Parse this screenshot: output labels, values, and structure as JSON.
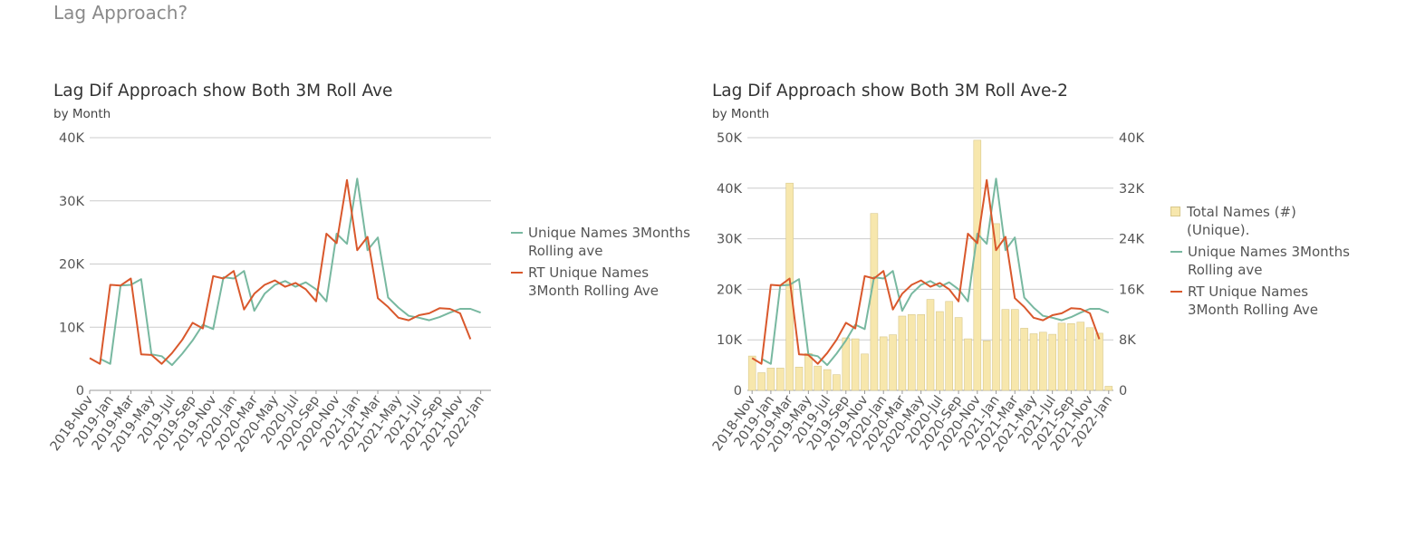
{
  "page": {
    "title": "Lag Approach?"
  },
  "colors": {
    "unique": "#78b8a0",
    "rt": "#d9582c",
    "bars": "#f7e7ad",
    "bars_border": "#d8c88c",
    "grid": "#cccccc"
  },
  "chart_data": [
    {
      "type": "line",
      "title": "Lag Dif Approach show  Both 3M Roll Ave",
      "subtitle": "by Month",
      "x": [
        "2018-Nov",
        "2018-Dec",
        "2019-Jan",
        "2019-Feb",
        "2019-Mar",
        "2019-Apr",
        "2019-May",
        "2019-Jun",
        "2019-Jul",
        "2019-Aug",
        "2019-Sep",
        "2019-Oct",
        "2019-Nov",
        "2019-Dec",
        "2020-Jan",
        "2020-Feb",
        "2020-Mar",
        "2020-Apr",
        "2020-May",
        "2020-Jun",
        "2020-Jul",
        "2020-Aug",
        "2020-Sep",
        "2020-Oct",
        "2020-Nov",
        "2020-Dec",
        "2021-Jan",
        "2021-Feb",
        "2021-Mar",
        "2021-Apr",
        "2021-May",
        "2021-Jun",
        "2021-Jul",
        "2021-Aug",
        "2021-Sep",
        "2021-Oct",
        "2021-Nov",
        "2021-Dec",
        "2022-Jan",
        "2022-Feb"
      ],
      "x_tick_labels": [
        "2018-Nov",
        "2019-Jan",
        "2019-Mar",
        "2019-May",
        "2019-Jul",
        "2019-Sep",
        "2019-Nov",
        "2020-Jan",
        "2020-Mar",
        "2020-May",
        "2020-Jul",
        "2020-Sep",
        "2020-Nov",
        "2021-Jan",
        "2021-Mar",
        "2021-May",
        "2021-Jul",
        "2021-Sep",
        "2021-Nov",
        "2022-Jan"
      ],
      "ylim": [
        0,
        40000
      ],
      "y_ticks": [
        "0",
        "10K",
        "20K",
        "30K",
        "40K"
      ],
      "series": [
        {
          "name": "Unique Names 3Months Rolling ave",
          "color": "#78b8a0",
          "values": [
            null,
            5000,
            4200,
            16600,
            16700,
            17600,
            5700,
            5400,
            4000,
            5800,
            7900,
            10400,
            9700,
            17900,
            17700,
            18900,
            12600,
            15300,
            16700,
            17300,
            16400,
            17100,
            16000,
            14100,
            24800,
            23200,
            33500,
            22200,
            24200,
            14700,
            13100,
            11800,
            11500,
            11100,
            11600,
            12300,
            12900,
            12900,
            12300,
            null
          ]
        },
        {
          "name": "RT Unique Names 3Month Rolling Ave",
          "color": "#d9582c",
          "values": [
            5100,
            4200,
            16700,
            16600,
            17700,
            5700,
            5600,
            4200,
            5900,
            8000,
            10700,
            9800,
            18100,
            17700,
            18900,
            12800,
            15300,
            16700,
            17400,
            16400,
            17000,
            16000,
            14100,
            24800,
            23300,
            33300,
            22200,
            24300,
            14600,
            13200,
            11500,
            11100,
            11900,
            12200,
            13000,
            12900,
            12200,
            8100,
            null,
            null
          ]
        }
      ],
      "legend": "right",
      "grid": true
    },
    {
      "type": "bar",
      "title": "Lag Dif Approach show  Both 3M Roll Ave-2",
      "subtitle": "by Month",
      "x_tick_labels": [
        "2018-Nov",
        "2019-Jan",
        "2019-Mar",
        "2019-May",
        "2019-Jul",
        "2019-Sep",
        "2019-Nov",
        "2020-Jan",
        "2020-Mar",
        "2020-May",
        "2020-Jul",
        "2020-Sep",
        "2020-Nov",
        "2021-Jan",
        "2021-Mar",
        "2021-May",
        "2021-Jul",
        "2021-Sep",
        "2021-Nov",
        "2022-Jan"
      ],
      "ylim_left": [
        0,
        50000
      ],
      "y_ticks_left": [
        "0",
        "10K",
        "20K",
        "30K",
        "40K",
        "50K"
      ],
      "ylim_right": [
        0,
        40000
      ],
      "y_ticks_right": [
        "0",
        "8K",
        "16K",
        "24K",
        "32K",
        "40K"
      ],
      "series": [
        {
          "name": "Total Names (#) (Unique).",
          "axis": "left",
          "kind": "bar",
          "color": "#f7e7ad",
          "values": [
            6800,
            3500,
            4400,
            4400,
            41000,
            4600,
            7300,
            4800,
            4100,
            3100,
            10400,
            10200,
            7200,
            35000,
            10600,
            11000,
            14700,
            15000,
            15000,
            18000,
            15600,
            17600,
            14400,
            10200,
            49500,
            9800,
            33000,
            16000,
            16000,
            12300,
            11200,
            11500,
            11100,
            13300,
            13200,
            13500,
            12400,
            11300,
            800
          ]
        },
        {
          "name": "Unique Names 3Months Rolling ave",
          "axis": "right",
          "kind": "line",
          "color": "#78b8a0",
          "values": [
            null,
            5000,
            4200,
            16600,
            16700,
            17600,
            5700,
            5400,
            4000,
            5800,
            7900,
            10400,
            9700,
            17900,
            17700,
            18900,
            12600,
            15300,
            16700,
            17300,
            16400,
            17100,
            16000,
            14100,
            24800,
            23200,
            33500,
            22200,
            24200,
            14700,
            13100,
            11800,
            11500,
            11100,
            11600,
            12300,
            12900,
            12900,
            12300
          ]
        },
        {
          "name": "RT Unique Names 3Month Rolling Ave",
          "axis": "right",
          "kind": "line",
          "color": "#d9582c",
          "values": [
            5100,
            4200,
            16700,
            16600,
            17700,
            5700,
            5600,
            4200,
            5900,
            8000,
            10700,
            9800,
            18100,
            17700,
            18900,
            12800,
            15300,
            16700,
            17400,
            16400,
            17000,
            16000,
            14100,
            24800,
            23300,
            33300,
            22200,
            24300,
            14600,
            13200,
            11500,
            11100,
            11900,
            12200,
            13000,
            12900,
            12200,
            8100,
            null
          ]
        }
      ],
      "legend": "right",
      "grid": true
    }
  ],
  "legend1": {
    "items": [
      {
        "line1": "Unique Names 3Months",
        "line2": "Rolling ave"
      },
      {
        "line1": "RT Unique Names",
        "line2": "3Month Rolling Ave"
      }
    ]
  },
  "legend2": {
    "items": [
      {
        "line1": "Total Names (#)",
        "line2": "(Unique)."
      },
      {
        "line1": "Unique Names 3Months",
        "line2": "Rolling ave"
      },
      {
        "line1": "RT Unique Names",
        "line2": "3Month Rolling Ave"
      }
    ]
  }
}
